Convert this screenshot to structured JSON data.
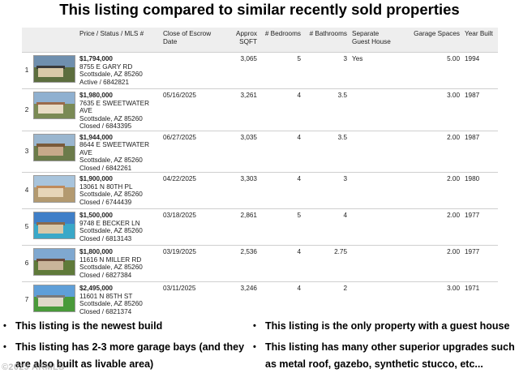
{
  "title": "This listing compared to similar recently sold properties",
  "table": {
    "headers": {
      "price_status": "Price / Status / MLS #",
      "close": "Close of Escrow Date",
      "sqft": "Approx SQFT",
      "bedrooms": "# Bedrooms",
      "bathrooms": "# Bathrooms",
      "guest": "Separate Guest House",
      "garage": "Garage Spaces",
      "year": "Year Built"
    },
    "rows": [
      {
        "index": "1",
        "price": "$1,794,000",
        "street": "8755 E GARY RD",
        "city": "Scottsdale, AZ 85260",
        "status": "Active / 6842821",
        "close": "",
        "sqft": "3,065",
        "bedrooms": "5",
        "bathrooms": "3",
        "guest": "Yes",
        "garage": "5.00",
        "year": "1994"
      },
      {
        "index": "2",
        "price": "$1,980,000",
        "street": "7635 E SWEETWATER AVE",
        "city": "Scottsdale, AZ 85260",
        "status": "Closed / 6843395",
        "close": "05/16/2025",
        "sqft": "3,261",
        "bedrooms": "4",
        "bathrooms": "3.5",
        "guest": "",
        "garage": "3.00",
        "year": "1987"
      },
      {
        "index": "3",
        "price": "$1,944,000",
        "street": "8644 E SWEETWATER AVE",
        "city": "Scottsdale, AZ 85260",
        "status": "Closed / 6842261",
        "close": "06/27/2025",
        "sqft": "3,035",
        "bedrooms": "4",
        "bathrooms": "3.5",
        "guest": "",
        "garage": "2.00",
        "year": "1987"
      },
      {
        "index": "4",
        "price": "$1,900,000",
        "street": "13061 N 80TH PL",
        "city": "Scottsdale, AZ 85260",
        "status": "Closed / 6744439",
        "close": "04/22/2025",
        "sqft": "3,303",
        "bedrooms": "4",
        "bathrooms": "3",
        "guest": "",
        "garage": "2.00",
        "year": "1980"
      },
      {
        "index": "5",
        "price": "$1,500,000",
        "street": "9748 E BECKER LN",
        "city": "Scottsdale, AZ 85260",
        "status": "Closed / 6813143",
        "close": "03/18/2025",
        "sqft": "2,861",
        "bedrooms": "5",
        "bathrooms": "4",
        "guest": "",
        "garage": "2.00",
        "year": "1977"
      },
      {
        "index": "6",
        "price": "$1,800,000",
        "street": "11616 N MILLER RD",
        "city": "Scottsdale, AZ 85260",
        "status": "Closed / 6827384",
        "close": "03/19/2025",
        "sqft": "2,536",
        "bedrooms": "4",
        "bathrooms": "2.75",
        "guest": "",
        "garage": "2.00",
        "year": "1977"
      },
      {
        "index": "7",
        "price": "$2,495,000",
        "street": "11601 N 85TH ST",
        "city": "Scottsdale, AZ 85260",
        "status": "Closed / 6821374",
        "close": "03/11/2025",
        "sqft": "3,246",
        "bedrooms": "4",
        "bathrooms": "2",
        "guest": "",
        "garage": "3.00",
        "year": "1971"
      }
    ]
  },
  "thumb_colors": [
    {
      "sky": "#6f8fae",
      "ground": "#5c6e3e",
      "house": "#d9c9a8",
      "roof": "#3a3a3a"
    },
    {
      "sky": "#8fb0d0",
      "ground": "#7a8a55",
      "house": "#e8dcc6",
      "roof": "#9a6a4a"
    },
    {
      "sky": "#9ab6cf",
      "ground": "#6b7b4a",
      "house": "#c7a98a",
      "roof": "#7a5a3a"
    },
    {
      "sky": "#a8c4dc",
      "ground": "#b39a70",
      "house": "#e6d5b8",
      "roof": "#c08a5a"
    },
    {
      "sky": "#3f7fc8",
      "ground": "#3aa8c8",
      "house": "#d8c8a8",
      "roof": "#8a6a4a"
    },
    {
      "sky": "#7fa8d0",
      "ground": "#5f7a3a",
      "house": "#c9b49a",
      "roof": "#6a4a3a"
    },
    {
      "sky": "#5f9fd8",
      "ground": "#4a9a3a",
      "house": "#e0d8c8",
      "roof": "#7a7a7a"
    }
  ],
  "bullets": [
    "This listing is the newest build",
    "This listing is the only property with a guest house",
    "This listing has 2-3 more garage bays (and they are also built as livable area)",
    "This listing has many other superior upgrades such as metal roof,  gazebo, synthetic stucco, etc..."
  ],
  "bullet_char": "•",
  "copyright": "©2025 ARMLS"
}
